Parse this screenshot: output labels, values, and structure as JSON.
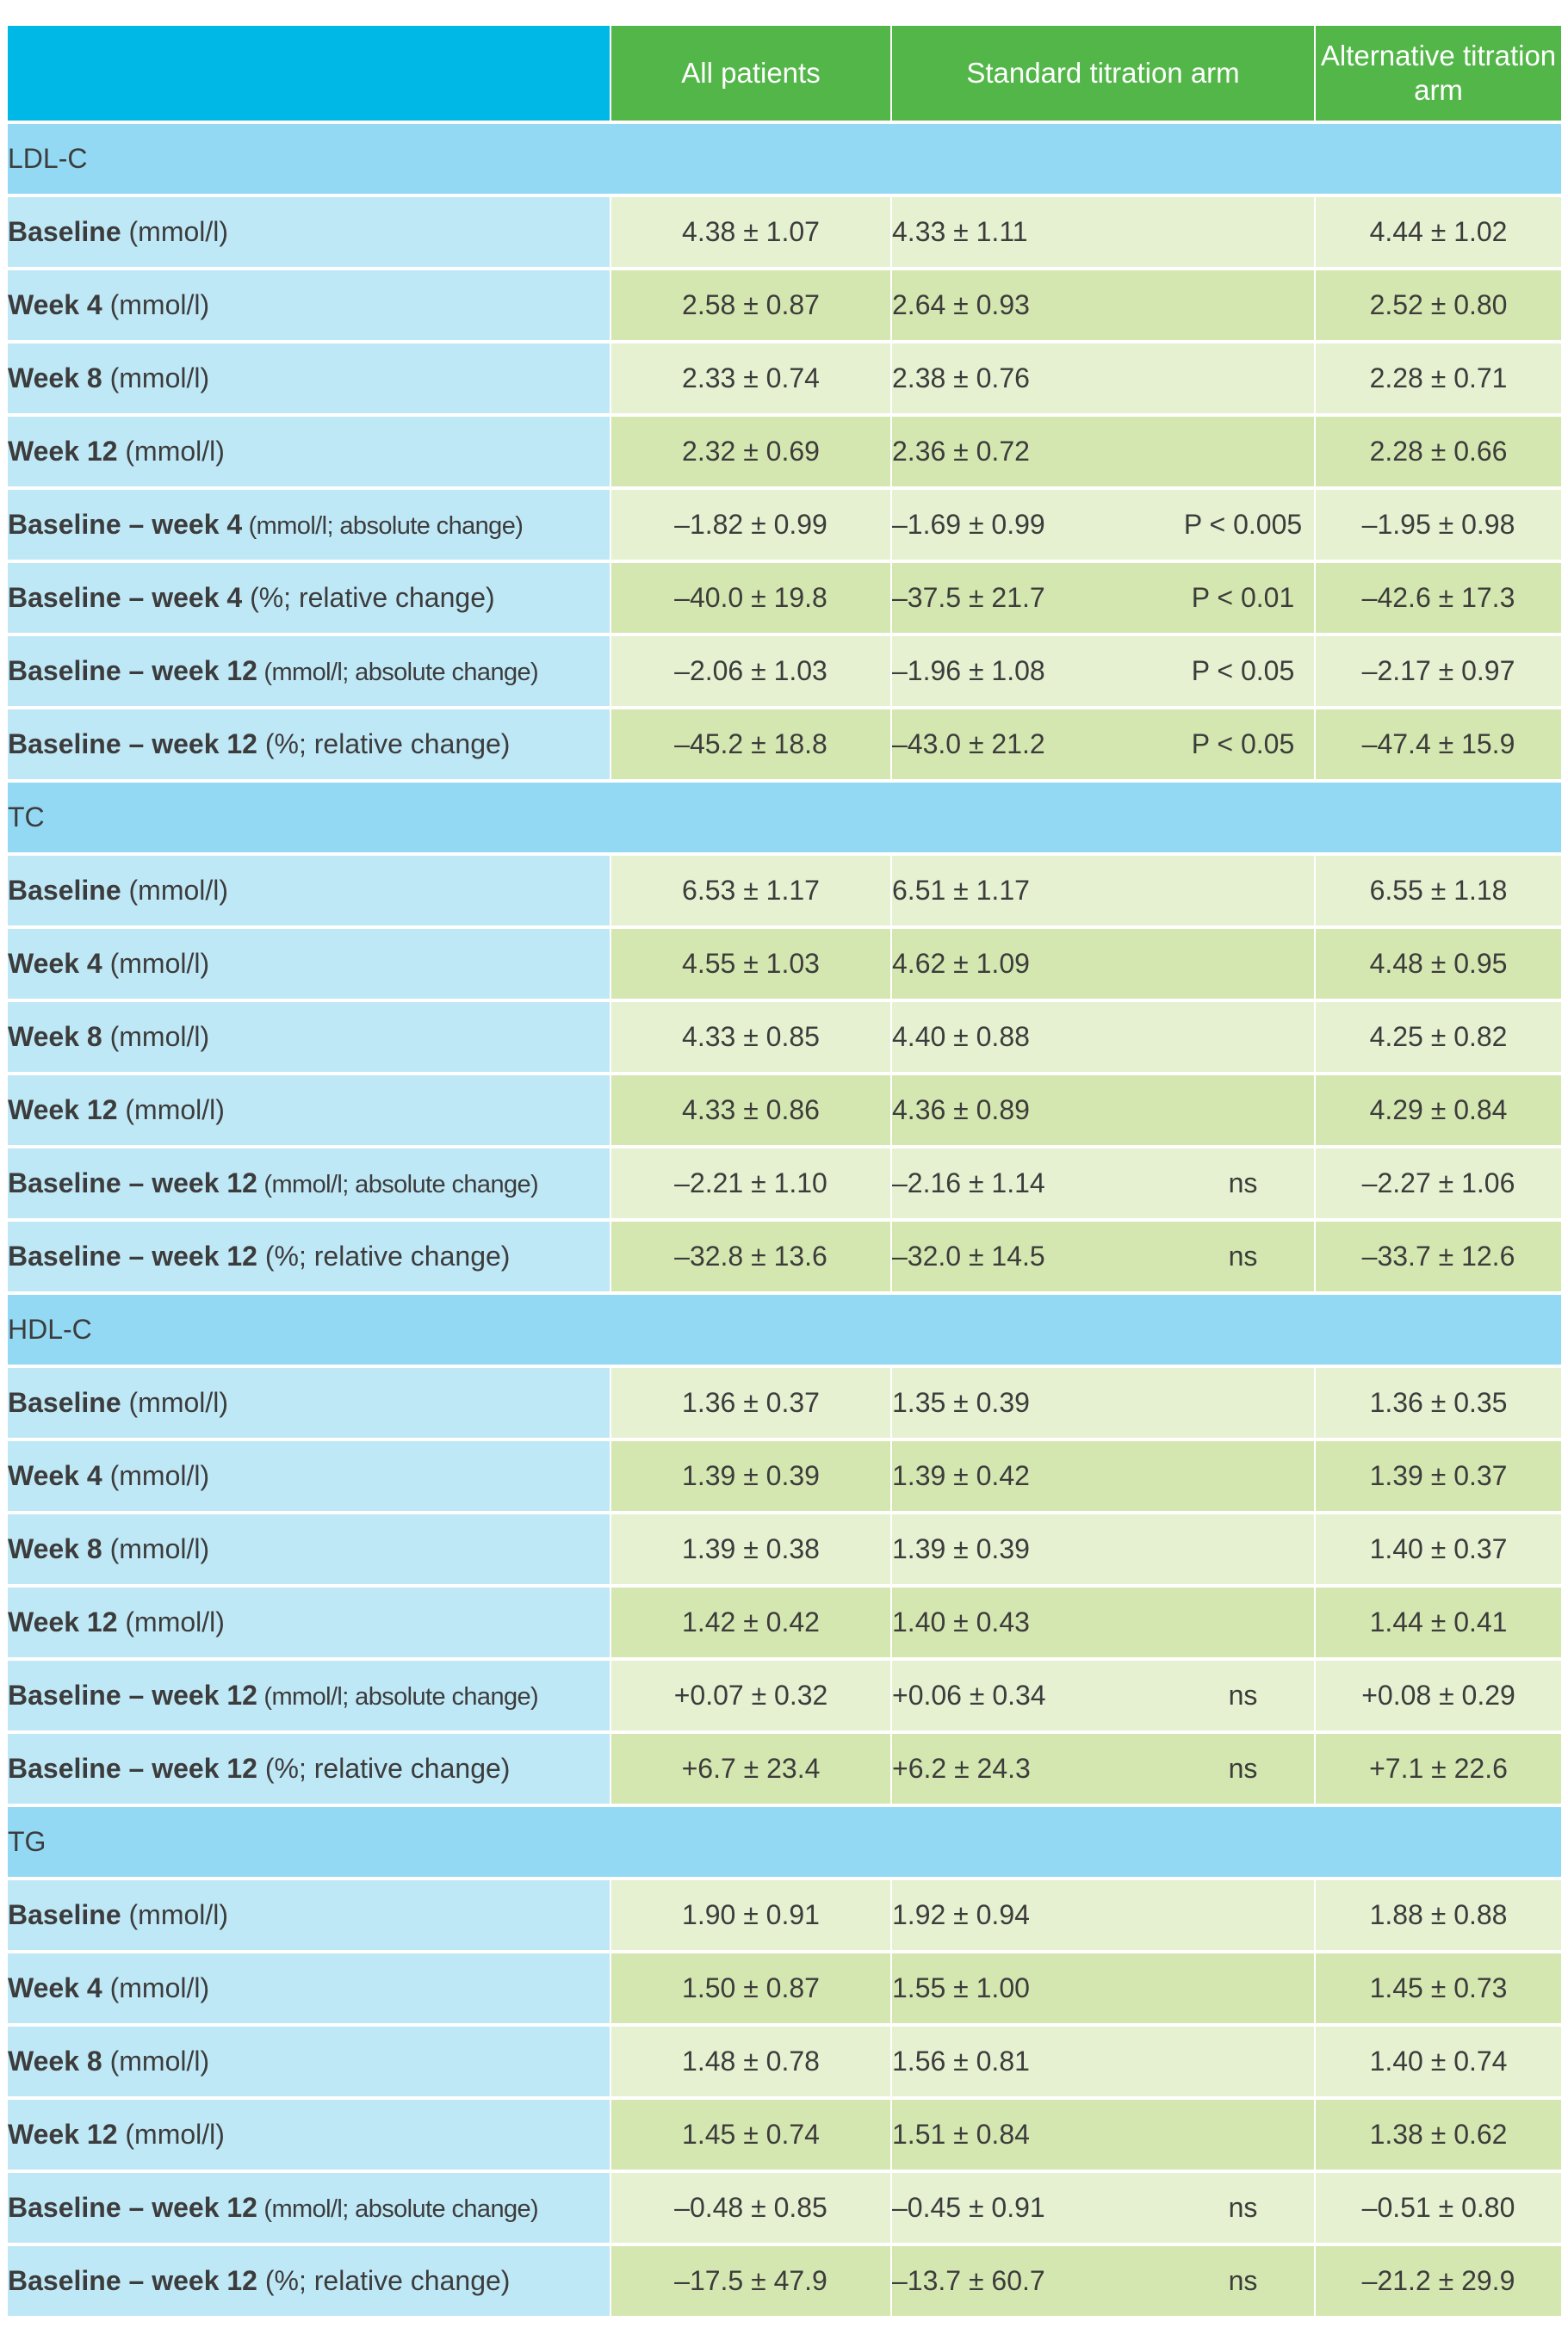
{
  "headers": [
    "",
    "All patients",
    "Standard titration arm",
    "",
    "Alternative titration arm"
  ],
  "sections": [
    {
      "name": "LDL-C",
      "rows": [
        {
          "bold": "Baseline",
          "unit": " (mmol/l)",
          "small": false,
          "all": "4.38 ± 1.07",
          "std": "4.33 ± 1.11",
          "p": "",
          "alt": "4.44 ± 1.02"
        },
        {
          "bold": "Week 4",
          "unit": " (mmol/l)",
          "small": false,
          "all": "2.58 ± 0.87",
          "std": "2.64 ± 0.93",
          "p": "",
          "alt": "2.52 ± 0.80"
        },
        {
          "bold": "Week 8",
          "unit": " (mmol/l)",
          "small": false,
          "all": "2.33 ± 0.74",
          "std": "2.38 ± 0.76",
          "p": "",
          "alt": "2.28 ± 0.71"
        },
        {
          "bold": "Week 12",
          "unit": " (mmol/l)",
          "small": false,
          "all": "2.32 ± 0.69",
          "std": "2.36 ± 0.72",
          "p": "",
          "alt": "2.28 ± 0.66"
        },
        {
          "bold": "Baseline – week 4",
          "unit": " (mmol/l; absolute change)",
          "small": true,
          "all": "–1.82 ± 0.99",
          "std": "–1.69 ± 0.99",
          "p": "P < 0.005",
          "alt": "–1.95 ± 0.98"
        },
        {
          "bold": "Baseline – week 4",
          "unit": " (%; relative change)",
          "small": false,
          "all": "–40.0 ± 19.8",
          "std": "–37.5 ± 21.7",
          "p": "P < 0.01",
          "alt": "–42.6 ± 17.3"
        },
        {
          "bold": "Baseline – week 12",
          "unit": " (mmol/l; absolute change)",
          "small": true,
          "all": "–2.06 ± 1.03",
          "std": "–1.96 ± 1.08",
          "p": "P < 0.05",
          "alt": "–2.17 ± 0.97"
        },
        {
          "bold": "Baseline – week 12",
          "unit": " (%; relative change)",
          "small": false,
          "all": "–45.2 ± 18.8",
          "std": "–43.0 ± 21.2",
          "p": "P < 0.05",
          "alt": "–47.4 ± 15.9"
        }
      ]
    },
    {
      "name": "TC",
      "rows": [
        {
          "bold": "Baseline",
          "unit": " (mmol/l)",
          "small": false,
          "all": "6.53 ± 1.17",
          "std": "6.51 ± 1.17",
          "p": "",
          "alt": "6.55 ± 1.18"
        },
        {
          "bold": "Week 4",
          "unit": " (mmol/l)",
          "small": false,
          "all": "4.55 ± 1.03",
          "std": "4.62 ± 1.09",
          "p": "",
          "alt": "4.48 ± 0.95"
        },
        {
          "bold": "Week 8",
          "unit": " (mmol/l)",
          "small": false,
          "all": "4.33 ± 0.85",
          "std": "4.40 ± 0.88",
          "p": "",
          "alt": "4.25 ± 0.82"
        },
        {
          "bold": "Week 12",
          "unit": " (mmol/l)",
          "small": false,
          "all": "4.33 ± 0.86",
          "std": "4.36 ± 0.89",
          "p": "",
          "alt": "4.29 ± 0.84"
        },
        {
          "bold": "Baseline – week 12",
          "unit": " (mmol/l; absolute change)",
          "small": true,
          "all": "–2.21 ± 1.10",
          "std": "–2.16 ± 1.14",
          "p": "ns",
          "alt": "–2.27 ± 1.06"
        },
        {
          "bold": "Baseline – week 12",
          "unit": " (%; relative change)",
          "small": false,
          "all": "–32.8 ± 13.6",
          "std": "–32.0 ± 14.5",
          "p": "ns",
          "alt": "–33.7 ± 12.6"
        }
      ]
    },
    {
      "name": "HDL-C",
      "rows": [
        {
          "bold": "Baseline",
          "unit": " (mmol/l)",
          "small": false,
          "all": "1.36 ± 0.37",
          "std": "1.35 ± 0.39",
          "p": "",
          "alt": "1.36 ± 0.35"
        },
        {
          "bold": "Week 4",
          "unit": " (mmol/l)",
          "small": false,
          "all": "1.39 ± 0.39",
          "std": "1.39 ± 0.42",
          "p": "",
          "alt": "1.39 ± 0.37"
        },
        {
          "bold": "Week 8",
          "unit": " (mmol/l)",
          "small": false,
          "all": "1.39 ± 0.38",
          "std": "1.39 ± 0.39",
          "p": "",
          "alt": "1.40 ± 0.37"
        },
        {
          "bold": "Week 12",
          "unit": " (mmol/l)",
          "small": false,
          "all": "1.42 ± 0.42",
          "std": "1.40 ± 0.43",
          "p": "",
          "alt": "1.44 ± 0.41"
        },
        {
          "bold": "Baseline – week 12",
          "unit": " (mmol/l; absolute change)",
          "small": true,
          "all": "+0.07 ± 0.32",
          "std": "+0.06 ± 0.34",
          "p": "ns",
          "alt": "+0.08 ± 0.29"
        },
        {
          "bold": "Baseline – week 12",
          "unit": " (%; relative change)",
          "small": false,
          "all": "+6.7 ± 23.4",
          "std": "+6.2 ± 24.3",
          "p": "ns",
          "alt": "+7.1 ± 22.6"
        }
      ]
    },
    {
      "name": "TG",
      "rows": [
        {
          "bold": "Baseline",
          "unit": " (mmol/l)",
          "small": false,
          "all": "1.90 ± 0.91",
          "std": "1.92 ± 0.94",
          "p": "",
          "alt": "1.88 ± 0.88"
        },
        {
          "bold": "Week 4",
          "unit": " (mmol/l)",
          "small": false,
          "all": "1.50 ± 0.87",
          "std": "1.55 ± 1.00",
          "p": "",
          "alt": "1.45 ± 0.73"
        },
        {
          "bold": "Week 8",
          "unit": " (mmol/l)",
          "small": false,
          "all": "1.48 ± 0.78",
          "std": "1.56 ± 0.81",
          "p": "",
          "alt": "1.40 ± 0.74"
        },
        {
          "bold": "Week 12",
          "unit": " (mmol/l)",
          "small": false,
          "all": "1.45 ± 0.74",
          "std": "1.51 ± 0.84",
          "p": "",
          "alt": "1.38 ± 0.62"
        },
        {
          "bold": "Baseline – week 12",
          "unit": " (mmol/l; absolute change)",
          "small": true,
          "all": "–0.48 ± 0.85",
          "std": "–0.45 ± 0.91",
          "p": "ns",
          "alt": "–0.51 ± 0.80"
        },
        {
          "bold": "Baseline – week 12",
          "unit": " (%; relative change)",
          "small": false,
          "all": "–17.5 ± 47.9",
          "std": "–13.7 ± 60.7",
          "p": "ns",
          "alt": "–21.2 ± 29.9"
        }
      ]
    }
  ]
}
